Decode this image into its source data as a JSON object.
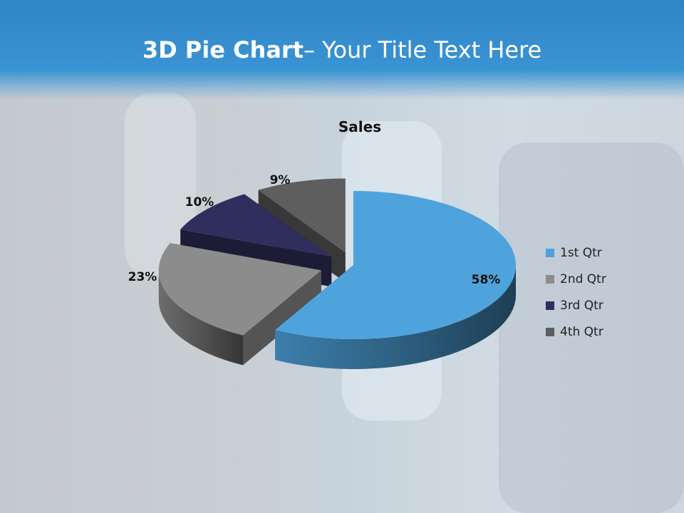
{
  "slide": {
    "title_bold": "3D Pie Chart",
    "title_rest": "– Your Title Text Here"
  },
  "chart_data": {
    "type": "pie",
    "title": "Sales",
    "categories": [
      "1st Qtr",
      "2nd Qtr",
      "3rd Qtr",
      "4th Qtr"
    ],
    "values": [
      58,
      23,
      10,
      9
    ],
    "labels": [
      "58%",
      "23%",
      "10%",
      "9%"
    ],
    "colors": [
      "#4ea3dc",
      "#8c8c8c",
      "#2f2e5c",
      "#5e5e5e"
    ],
    "three_d": true,
    "exploded": true,
    "legend_position": "right"
  }
}
